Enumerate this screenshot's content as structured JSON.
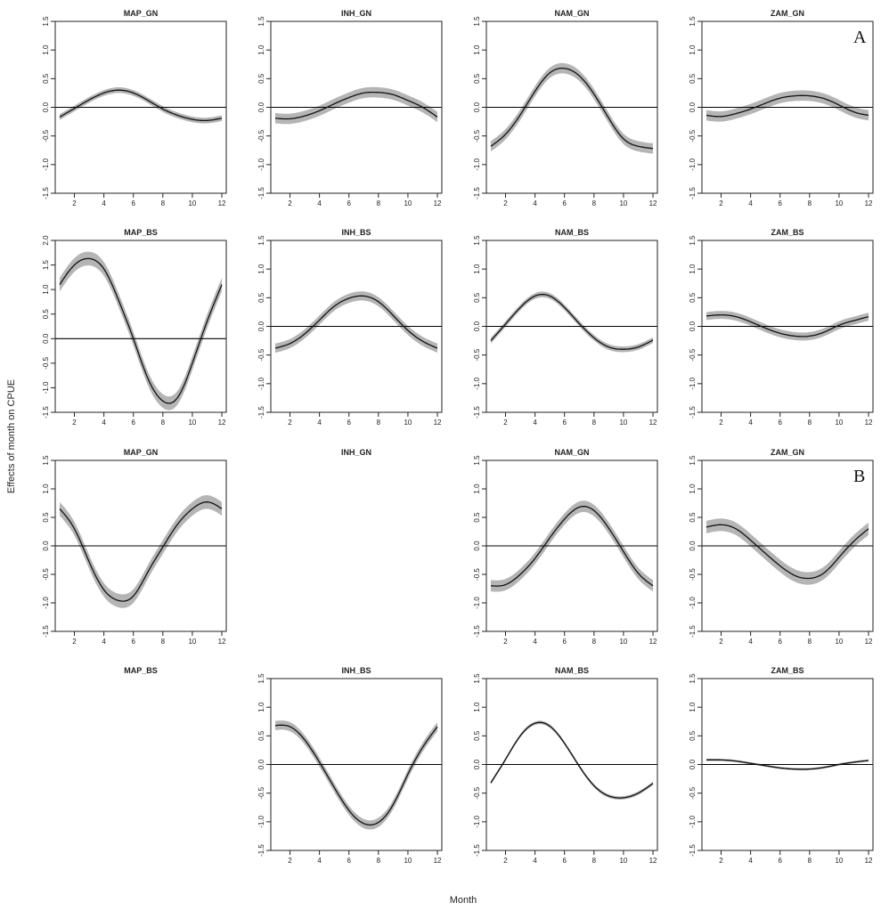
{
  "ylabel": "Effects of month on CPUE",
  "xlabel": "Month",
  "letters": {
    "A": "A",
    "B": "B"
  },
  "chart_data": {
    "type": "line",
    "xlabel": "Month",
    "ylabel": "Effects of month on CPUE",
    "x_ticks": [
      2,
      4,
      6,
      8,
      10,
      12
    ],
    "y_tick_labels": [
      "-1.5",
      "-1.0",
      "-0.5",
      "0.0",
      "0.5",
      "1.0",
      "1.5"
    ],
    "y_tick_labels_big": [
      "-1.5",
      "-1.0",
      "-0.5",
      "0.0",
      "0.5",
      "1.0",
      "1.5",
      "2.0"
    ],
    "panels": [
      {
        "title": "MAP_GN",
        "x": [
          1,
          2,
          3,
          4,
          5,
          6,
          7,
          8,
          9,
          10,
          11,
          12
        ],
        "y": [
          -0.17,
          -0.02,
          0.13,
          0.25,
          0.3,
          0.25,
          0.12,
          -0.03,
          -0.14,
          -0.21,
          -0.23,
          -0.19
        ],
        "band": 0.05,
        "ylim": [
          -1.5,
          1.5
        ]
      },
      {
        "title": "INH_GN",
        "x": [
          1,
          2,
          3,
          4,
          5,
          6,
          7,
          8,
          9,
          10,
          11,
          12
        ],
        "y": [
          -0.19,
          -0.2,
          -0.15,
          -0.06,
          0.06,
          0.17,
          0.25,
          0.26,
          0.22,
          0.12,
          0.0,
          -0.17
        ],
        "band": 0.09,
        "ylim": [
          -1.5,
          1.5
        ]
      },
      {
        "title": "NAM_GN",
        "x": [
          1,
          2,
          3,
          4,
          5,
          6,
          7,
          8,
          9,
          10,
          11,
          12
        ],
        "y": [
          -0.68,
          -0.47,
          -0.13,
          0.28,
          0.6,
          0.68,
          0.55,
          0.23,
          -0.19,
          -0.55,
          -0.68,
          -0.72
        ],
        "band": 0.09,
        "ylim": [
          -1.5,
          1.5
        ]
      },
      {
        "title": "ZAM_GN",
        "x": [
          1,
          2,
          3,
          4,
          5,
          6,
          7,
          8,
          9,
          10,
          11,
          12
        ],
        "y": [
          -0.14,
          -0.16,
          -0.11,
          -0.03,
          0.07,
          0.16,
          0.2,
          0.2,
          0.15,
          0.04,
          -0.08,
          -0.14
        ],
        "band": 0.09,
        "ylim": [
          -1.5,
          1.5
        ]
      },
      {
        "title": "MAP_BS",
        "x": [
          1,
          2,
          3,
          4,
          5,
          6,
          7,
          8,
          9,
          10,
          11,
          12
        ],
        "y": [
          1.1,
          1.5,
          1.63,
          1.42,
          0.78,
          0.0,
          -0.82,
          -1.27,
          -1.2,
          -0.5,
          0.35,
          1.1
        ],
        "band": 0.14,
        "ylim": [
          -1.5,
          2.0
        ]
      },
      {
        "title": "INH_BS",
        "x": [
          1,
          2,
          3,
          4,
          5,
          6,
          7,
          8,
          9,
          10,
          11,
          12
        ],
        "y": [
          -0.38,
          -0.3,
          -0.13,
          0.11,
          0.35,
          0.49,
          0.53,
          0.43,
          0.19,
          -0.07,
          -0.26,
          -0.38
        ],
        "band": 0.08,
        "ylim": [
          -1.5,
          1.5
        ]
      },
      {
        "title": "NAM_BS",
        "x": [
          1,
          2,
          3,
          4,
          5,
          6,
          7,
          8,
          9,
          10,
          11,
          12
        ],
        "y": [
          -0.25,
          0.04,
          0.33,
          0.53,
          0.53,
          0.33,
          0.05,
          -0.2,
          -0.36,
          -0.4,
          -0.36,
          -0.24
        ],
        "band": 0.05,
        "ylim": [
          -1.5,
          1.5
        ]
      },
      {
        "title": "ZAM_BS",
        "x": [
          1,
          2,
          3,
          4,
          5,
          6,
          7,
          8,
          9,
          10,
          11,
          12
        ],
        "y": [
          0.18,
          0.2,
          0.17,
          0.08,
          -0.03,
          -0.12,
          -0.17,
          -0.17,
          -0.1,
          0.02,
          0.1,
          0.17
        ],
        "band": 0.07,
        "ylim": [
          -1.5,
          1.5
        ]
      },
      {
        "title": "MAP_GN",
        "x": [
          1,
          2,
          3,
          4,
          5,
          6,
          7,
          8,
          9,
          10,
          11,
          12
        ],
        "y": [
          0.65,
          0.3,
          -0.28,
          -0.77,
          -0.96,
          -0.88,
          -0.45,
          -0.02,
          0.38,
          0.65,
          0.77,
          0.65
        ],
        "band": 0.12,
        "ylim": [
          -1.5,
          1.5
        ]
      },
      {
        "title": "INH_GN",
        "empty": true
      },
      {
        "title": "NAM_GN",
        "x": [
          1,
          2,
          3,
          4,
          5,
          6,
          7,
          8,
          9,
          10,
          11,
          12
        ],
        "y": [
          -0.7,
          -0.68,
          -0.5,
          -0.22,
          0.14,
          0.47,
          0.68,
          0.62,
          0.31,
          -0.1,
          -0.48,
          -0.7
        ],
        "band": 0.1,
        "ylim": [
          -1.5,
          1.5
        ]
      },
      {
        "title": "ZAM_GN",
        "x": [
          1,
          2,
          3,
          4,
          5,
          6,
          7,
          8,
          9,
          10,
          11,
          12
        ],
        "y": [
          0.33,
          0.37,
          0.3,
          0.1,
          -0.13,
          -0.35,
          -0.52,
          -0.57,
          -0.47,
          -0.2,
          0.08,
          0.3
        ],
        "band": 0.11,
        "ylim": [
          -1.5,
          1.5
        ]
      },
      {
        "title": "MAP_BS",
        "empty": true
      },
      {
        "title": "INH_BS",
        "x": [
          1,
          2,
          3,
          4,
          5,
          6,
          7,
          8,
          9,
          10,
          11,
          12
        ],
        "y": [
          0.68,
          0.66,
          0.43,
          0.04,
          -0.4,
          -0.8,
          -1.03,
          -1.01,
          -0.7,
          -0.17,
          0.3,
          0.66
        ],
        "band": 0.08,
        "ylim": [
          -1.5,
          1.5
        ]
      },
      {
        "title": "NAM_BS",
        "x": [
          1,
          2,
          3,
          4,
          5,
          6,
          7,
          8,
          9,
          10,
          11,
          12
        ],
        "y": [
          -0.32,
          0.09,
          0.5,
          0.72,
          0.67,
          0.37,
          -0.03,
          -0.37,
          -0.55,
          -0.58,
          -0.5,
          -0.33
        ],
        "band": 0.03,
        "ylim": [
          -1.5,
          1.5
        ]
      },
      {
        "title": "ZAM_BS",
        "x": [
          1,
          2,
          3,
          4,
          5,
          6,
          7,
          8,
          9,
          10,
          11,
          12
        ],
        "y": [
          0.08,
          0.08,
          0.06,
          0.02,
          -0.02,
          -0.06,
          -0.08,
          -0.08,
          -0.05,
          0.0,
          0.04,
          0.07
        ],
        "band": 0.02,
        "ylim": [
          -1.5,
          1.5
        ]
      }
    ]
  }
}
